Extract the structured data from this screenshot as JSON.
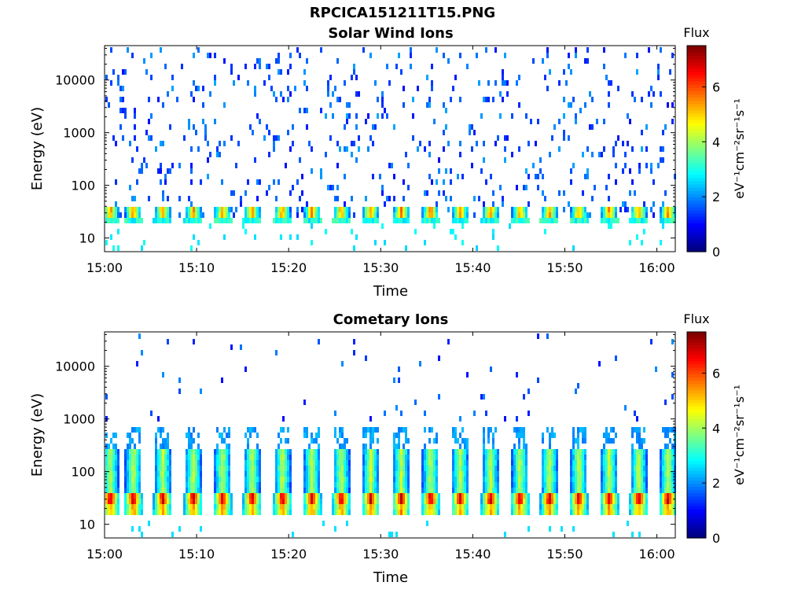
{
  "figure": {
    "title": "RPCICA151211T15.PNG"
  },
  "colors": {
    "colormap": "jet",
    "axis": "#000000",
    "background": "#ffffff"
  },
  "chart_data": [
    {
      "type": "heatmap",
      "title": "Solar Wind Ions",
      "xlabel": "Time",
      "ylabel": "Energy (eV)",
      "x_ticks": [
        "15:00",
        "15:10",
        "15:20",
        "15:30",
        "15:40",
        "15:50",
        "16:00"
      ],
      "x_range_minutes": [
        0,
        62
      ],
      "y_scale": "log",
      "y_ticks": [
        10,
        100,
        1000,
        10000
      ],
      "y_tick_labels": [
        "10",
        "100",
        "1000",
        "10000"
      ],
      "y_range": [
        5.5,
        45000
      ],
      "colorbar": {
        "label": "Flux",
        "units": "eV⁻¹cm⁻²sr⁻¹s⁻¹",
        "range": [
          0,
          7.5
        ],
        "ticks": [
          "0",
          "2",
          "4",
          "6"
        ]
      },
      "scan_centers_minutes": [
        0.5,
        3.0,
        6.2,
        9.5,
        12.7,
        15.9,
        19.2,
        22.4,
        25.6,
        28.8,
        32.1,
        35.3,
        38.5,
        41.8,
        45.0,
        48.2,
        51.4,
        54.7,
        57.9,
        61.1
      ],
      "bands": [
        {
          "energy_ev": [
            29,
            45
          ],
          "peak_flux": 5.2
        },
        {
          "energy_ev": [
            20,
            29
          ],
          "peak_flux": 3.5
        }
      ],
      "background_flux": "sparse 1-2 at 30 eV to 40000 eV"
    },
    {
      "type": "heatmap",
      "title": "Cometary Ions",
      "xlabel": "Time",
      "ylabel": "Energy (eV)",
      "x_ticks": [
        "15:00",
        "15:10",
        "15:20",
        "15:30",
        "15:40",
        "15:50",
        "16:00"
      ],
      "x_range_minutes": [
        0,
        62
      ],
      "y_scale": "log",
      "y_ticks": [
        10,
        100,
        1000,
        10000
      ],
      "y_tick_labels": [
        "10",
        "100",
        "1000",
        "10000"
      ],
      "y_range": [
        5.5,
        45000
      ],
      "colorbar": {
        "label": "Flux",
        "units": "eV⁻¹cm⁻²sr⁻¹s⁻¹",
        "range": [
          0,
          7.5
        ],
        "ticks": [
          "0",
          "2",
          "4",
          "6"
        ]
      },
      "scan_centers_minutes": [
        0.5,
        3.0,
        6.2,
        9.5,
        12.7,
        15.9,
        19.2,
        22.4,
        25.6,
        28.8,
        32.1,
        35.3,
        38.5,
        41.8,
        45.0,
        48.2,
        51.4,
        54.7,
        57.9,
        61.1
      ],
      "bands": [
        {
          "energy_ev": [
            30,
            45
          ],
          "peak_flux": 6.8
        },
        {
          "energy_ev": [
            18,
            30
          ],
          "peak_flux": 5.5
        },
        {
          "energy_ev": [
            45,
            300
          ],
          "peak_flux": 4.0
        },
        {
          "energy_ev": [
            300,
            800
          ],
          "peak_flux": 2.2
        }
      ],
      "background_flux": "sparse 1-2 at 1000 eV to 20000 eV"
    }
  ]
}
